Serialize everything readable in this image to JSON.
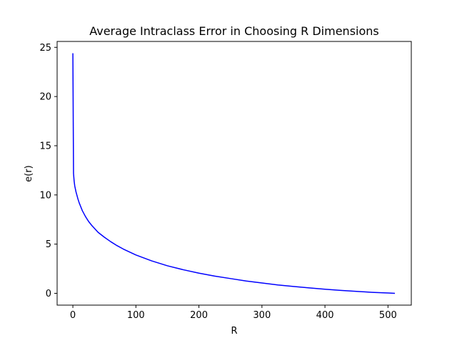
{
  "chart_data": {
    "type": "line",
    "title": "Average Intraclass Error in Choosing R Dimensions",
    "xlabel": "R",
    "ylabel": "e(r)",
    "xlim": [
      -25,
      537
    ],
    "ylim": [
      -1.2,
      25.6
    ],
    "x_ticks": [
      0,
      100,
      200,
      300,
      400,
      500
    ],
    "y_ticks": [
      0,
      5,
      10,
      15,
      20,
      25
    ],
    "grid": false,
    "legend": "none",
    "series": [
      {
        "color": "#0000ff",
        "x": [
          0,
          1,
          2,
          3,
          5,
          8,
          10,
          15,
          20,
          25,
          30,
          40,
          50,
          60,
          70,
          80,
          90,
          100,
          125,
          150,
          175,
          200,
          225,
          250,
          275,
          300,
          325,
          350,
          375,
          400,
          425,
          450,
          475,
          500,
          511
        ],
        "y": [
          24.4,
          12.2,
          11.4,
          10.9,
          10.3,
          9.6,
          9.2,
          8.4,
          7.8,
          7.3,
          6.9,
          6.2,
          5.7,
          5.25,
          4.85,
          4.5,
          4.2,
          3.9,
          3.3,
          2.8,
          2.4,
          2.05,
          1.75,
          1.5,
          1.25,
          1.05,
          0.85,
          0.7,
          0.55,
          0.42,
          0.3,
          0.2,
          0.1,
          0.03,
          0.0
        ]
      }
    ]
  }
}
